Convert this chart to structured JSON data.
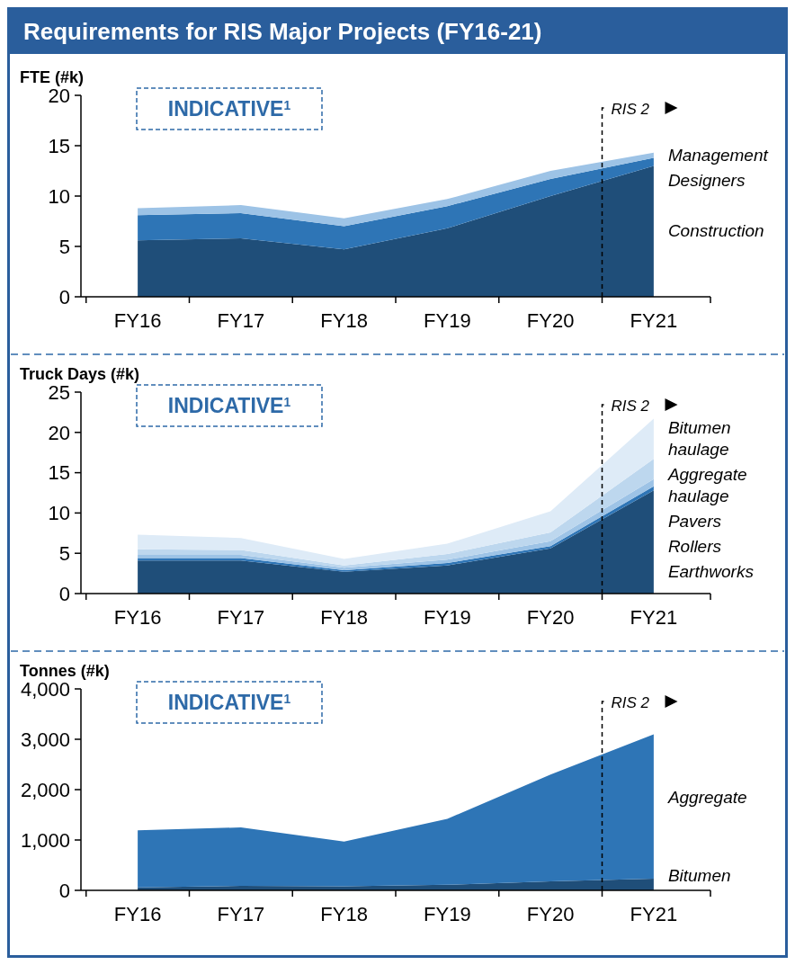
{
  "chart_data": [
    {
      "type": "area",
      "title": "Requirements for RIS Major Projects (FY16-21)",
      "ylabel": "FTE (#k)",
      "stacked": true,
      "legend": "right",
      "categories": [
        "FY16",
        "FY17",
        "FY18",
        "FY19",
        "FY20",
        "FY21"
      ],
      "series": [
        {
          "name": "Construction",
          "color": "#1f4e79",
          "values": [
            5.6,
            5.8,
            4.7,
            6.8,
            10.0,
            13.0
          ]
        },
        {
          "name": "Designers",
          "color": "#2e75b6",
          "values": [
            2.5,
            2.5,
            2.3,
            2.2,
            1.7,
            0.8
          ]
        },
        {
          "name": "Management",
          "color": "#9dc3e6",
          "values": [
            0.7,
            0.8,
            0.8,
            0.7,
            0.8,
            0.5
          ]
        }
      ],
      "ylim": [
        0,
        20
      ],
      "yticks": [
        0,
        5,
        10,
        15,
        20
      ],
      "annotations": [
        "INDICATIVE$^{1}$",
        {
          "text": "RIS 2"
        }
      ]
    },
    {
      "type": "area",
      "ylabel": "Truck Days (#k)",
      "stacked": true,
      "legend": "right",
      "categories": [
        "FY16",
        "FY17",
        "FY18",
        "FY19",
        "FY20",
        "FY21"
      ],
      "series": [
        {
          "name": "Earthworks",
          "color": "#1f4e79",
          "values": [
            4.1,
            4.1,
            2.7,
            3.5,
            5.6,
            12.8
          ]
        },
        {
          "name": "Rollers",
          "color": "#2e75b6",
          "values": [
            0.3,
            0.3,
            0.2,
            0.3,
            0.3,
            0.5
          ]
        },
        {
          "name": "Pavers",
          "color": "#9dc3e6",
          "values": [
            0.4,
            0.4,
            0.3,
            0.4,
            0.6,
            0.9
          ]
        },
        {
          "name": "Aggregate haulage",
          "color": "#bdd7ee",
          "values": [
            0.7,
            0.6,
            0.3,
            0.7,
            1.1,
            2.5
          ]
        },
        {
          "name": "Bitumen haulage",
          "color": "#deebf7",
          "values": [
            1.8,
            1.5,
            0.8,
            1.3,
            2.6,
            5.0
          ]
        }
      ],
      "ylim": [
        0,
        25
      ],
      "yticks": [
        0,
        5,
        10,
        15,
        20,
        25
      ],
      "annotations": [
        "INDICATIVE$^{1}$",
        {
          "text": "RIS 2"
        }
      ]
    },
    {
      "type": "area",
      "ylabel": "Tonnes (#k)",
      "stacked": true,
      "legend": "right",
      "categories": [
        "FY16",
        "FY17",
        "FY18",
        "FY19",
        "FY20",
        "FY21"
      ],
      "series": [
        {
          "name": "Bitumen",
          "color": "#1f4e79",
          "values": [
            60,
            90,
            80,
            110,
            180,
            230
          ]
        },
        {
          "name": "Aggregate",
          "color": "#2e75b6",
          "values": [
            1130,
            1160,
            890,
            1310,
            2120,
            2870
          ]
        }
      ],
      "ylim": [
        0,
        4000
      ],
      "yticks": [
        0,
        {
          "value": 1000,
          "label": "1,000"
        },
        {
          "value": 2000,
          "label": "2,000"
        },
        {
          "value": 3000,
          "label": "3,000"
        },
        {
          "value": 4000,
          "label": "4,000"
        }
      ],
      "annotations": [
        "INDICATIVE$^{1}$",
        {
          "text": "RIS 2"
        }
      ]
    }
  ]
}
